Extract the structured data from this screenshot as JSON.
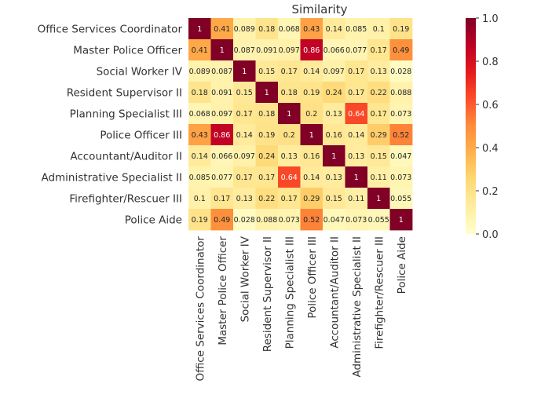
{
  "chart_data": {
    "type": "heatmap",
    "title": "Similarity",
    "row_labels": [
      "Office Services Coordinator",
      "Master Police Officer",
      "Social Worker IV",
      "Resident Supervisor II",
      "Planning Specialist III",
      "Police Officer III",
      "Accountant/Auditor II",
      "Administrative Specialist II",
      "Firefighter/Rescuer III",
      "Police Aide"
    ],
    "col_labels": [
      "Office Services Coordinator",
      "Master Police Officer",
      "Social Worker IV",
      "Resident Supervisor II",
      "Planning Specialist III",
      "Police Officer III",
      "Accountant/Auditor II",
      "Administrative Specialist II",
      "Firefighter/Rescuer III",
      "Police Aide"
    ],
    "values": [
      [
        1,
        0.41,
        0.089,
        0.18,
        0.068,
        0.43,
        0.14,
        0.085,
        0.1,
        0.19
      ],
      [
        0.41,
        1,
        0.087,
        0.091,
        0.097,
        0.86,
        0.066,
        0.077,
        0.17,
        0.49
      ],
      [
        0.089,
        0.087,
        1,
        0.15,
        0.17,
        0.14,
        0.097,
        0.17,
        0.13,
        0.028
      ],
      [
        0.18,
        0.091,
        0.15,
        1,
        0.18,
        0.19,
        0.24,
        0.17,
        0.22,
        0.088
      ],
      [
        0.068,
        0.097,
        0.17,
        0.18,
        1,
        0.2,
        0.13,
        0.64,
        0.17,
        0.073
      ],
      [
        0.43,
        0.86,
        0.14,
        0.19,
        0.2,
        1,
        0.16,
        0.14,
        0.29,
        0.52
      ],
      [
        0.14,
        0.066,
        0.097,
        0.24,
        0.13,
        0.16,
        1,
        0.13,
        0.15,
        0.047
      ],
      [
        0.085,
        0.077,
        0.17,
        0.17,
        0.64,
        0.14,
        0.13,
        1,
        0.11,
        0.073
      ],
      [
        0.1,
        0.17,
        0.13,
        0.22,
        0.17,
        0.29,
        0.15,
        0.11,
        1,
        0.055
      ],
      [
        0.19,
        0.49,
        0.028,
        0.088,
        0.073,
        0.52,
        0.047,
        0.073,
        0.055,
        1
      ]
    ],
    "value_labels": [
      [
        "1",
        "0.41",
        "0.089",
        "0.18",
        "0.068",
        "0.43",
        "0.14",
        "0.085",
        "0.1",
        "0.19"
      ],
      [
        "0.41",
        "1",
        "0.087",
        "0.091",
        "0.097",
        "0.86",
        "0.066",
        "0.077",
        "0.17",
        "0.49"
      ],
      [
        "0.089",
        "0.087",
        "1",
        "0.15",
        "0.17",
        "0.14",
        "0.097",
        "0.17",
        "0.13",
        "0.028"
      ],
      [
        "0.18",
        "0.091",
        "0.15",
        "1",
        "0.18",
        "0.19",
        "0.24",
        "0.17",
        "0.22",
        "0.088"
      ],
      [
        "0.068",
        "0.097",
        "0.17",
        "0.18",
        "1",
        "0.2",
        "0.13",
        "0.64",
        "0.17",
        "0.073"
      ],
      [
        "0.43",
        "0.86",
        "0.14",
        "0.19",
        "0.2",
        "1",
        "0.16",
        "0.14",
        "0.29",
        "0.52"
      ],
      [
        "0.14",
        "0.066",
        "0.097",
        "0.24",
        "0.13",
        "0.16",
        "1",
        "0.13",
        "0.15",
        "0.047"
      ],
      [
        "0.085",
        "0.077",
        "0.17",
        "0.17",
        "0.64",
        "0.14",
        "0.13",
        "1",
        "0.11",
        "0.073"
      ],
      [
        "0.1",
        "0.17",
        "0.13",
        "0.22",
        "0.17",
        "0.29",
        "0.15",
        "0.11",
        "1",
        "0.055"
      ],
      [
        "0.19",
        "0.49",
        "0.028",
        "0.088",
        "0.073",
        "0.52",
        "0.047",
        "0.073",
        "0.055",
        "1"
      ]
    ],
    "colormap": "YlOrRd",
    "colormap_stops": [
      "#ffffcc",
      "#ffeda0",
      "#fed976",
      "#feb24c",
      "#fd8d3c",
      "#fc4e2a",
      "#e31a1c",
      "#bd0026",
      "#800026"
    ],
    "vmin": 0.0,
    "vmax": 1.0,
    "colorbar_ticks": [
      0.0,
      0.2,
      0.4,
      0.6,
      0.8,
      1.0
    ],
    "colorbar_tick_labels": [
      "0.0",
      "0.2",
      "0.4",
      "0.6",
      "0.8",
      "1.0"
    ],
    "annotation_text_light": "#ffffff",
    "annotation_text_dark": "#262626",
    "label_color": "#333333"
  }
}
